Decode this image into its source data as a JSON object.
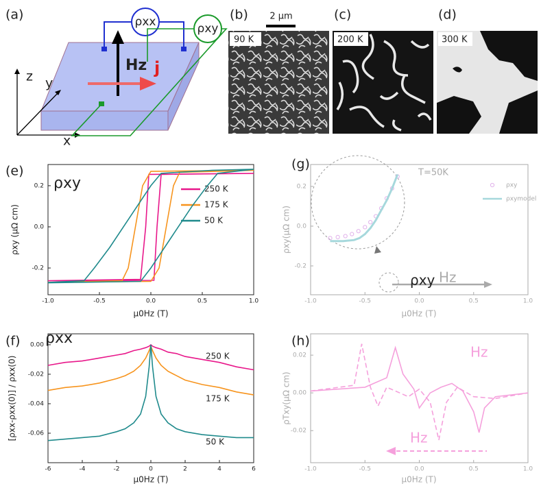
{
  "panels": {
    "a": {
      "label": "(a)",
      "rho_xx": "ρxx",
      "rho_xy": "ρxy",
      "field": "Hz",
      "current": "j",
      "axis_x": "x",
      "axis_y": "y",
      "axis_z": "z"
    },
    "b": {
      "label": "(b)",
      "temperature": "90 K",
      "scale": "2 μm"
    },
    "c": {
      "label": "(c)",
      "temperature": "200 K"
    },
    "d": {
      "label": "(d)",
      "temperature": "300 K"
    }
  },
  "chart_data": [
    {
      "type": "line",
      "label": "(e)",
      "x_label": "μ0Hz (T)",
      "y_label": "ρxy (μΩ cm)",
      "annotations": [
        "ρxy"
      ],
      "xlim": [
        -1,
        1
      ],
      "xticks": [
        {
          "value": -1,
          "label": "-1.0"
        },
        -0.5,
        {
          "value": 0,
          "label": "0.0"
        },
        0.5,
        {
          "value": 1,
          "label": "1.0"
        }
      ],
      "ylim": [
        -0.33,
        0.303
      ],
      "yticks": [
        -0.2,
        {
          "value": 0,
          "label": "0.0"
        },
        0.2
      ],
      "series": [
        {
          "name": "250 K",
          "color": "#e8178a",
          "x": [
            -1,
            0.03,
            0.06,
            0.1,
            1,
            1,
            -0.02,
            -0.05,
            -0.1,
            -1
          ],
          "values": [
            -0.262,
            -0.26,
            0,
            0.255,
            0.26,
            0.26,
            0.255,
            0,
            -0.255,
            -0.262
          ]
        },
        {
          "name": "175 K",
          "color": "#f7941d",
          "x": [
            -1,
            0,
            0.08,
            0.15,
            0.22,
            0.28,
            1,
            1,
            0,
            -0.08,
            -0.15,
            -0.22,
            -0.28,
            -1
          ],
          "values": [
            -0.27,
            -0.265,
            -0.2,
            0,
            0.2,
            0.265,
            0.275,
            0.275,
            0.27,
            0.2,
            0,
            -0.2,
            -0.262,
            -0.27
          ]
        },
        {
          "name": "50 K",
          "color": "#1f8a8c",
          "x": [
            -1,
            -0.1,
            0,
            0.2,
            0.4,
            0.55,
            0.65,
            1,
            1,
            0.6,
            0.1,
            0,
            -0.2,
            -0.4,
            -0.55,
            -0.65,
            -1
          ],
          "values": [
            -0.272,
            -0.265,
            -0.2,
            -0.05,
            0.1,
            0.2,
            0.26,
            0.28,
            0.28,
            0.275,
            0.26,
            0.2,
            0.05,
            -0.1,
            -0.2,
            -0.262,
            -0.27
          ]
        }
      ]
    },
    {
      "type": "line",
      "label": "(f)",
      "x_label": "μ0Hz (T)",
      "y_label": "[ρxx-ρxx(0)] / ρxx(0)",
      "annotations": [
        "ρxx"
      ],
      "xlim": [
        -6,
        6
      ],
      "xticks": [
        -6,
        -4,
        -2,
        0,
        2,
        4,
        6
      ],
      "ylim": [
        -0.08,
        0.0074
      ],
      "yticks": [
        {
          "value": 0,
          "label": "0.00"
        },
        -0.02,
        -0.04,
        -0.06
      ],
      "series": [
        {
          "name": "250 K",
          "color": "#e8178a",
          "x": [
            -6,
            -5,
            -4,
            -3,
            -2,
            -1.5,
            -1,
            -0.6,
            -0.3,
            -0.1,
            0,
            0.1,
            0.3,
            0.6,
            1,
            1.5,
            2,
            3,
            4,
            5,
            6
          ],
          "values": [
            -0.014,
            -0.012,
            -0.011,
            -0.009,
            -0.007,
            -0.006,
            -0.004,
            -0.003,
            -0.002,
            -0.001,
            0,
            -0.001,
            -0.002,
            -0.003,
            -0.005,
            -0.006,
            -0.008,
            -0.01,
            -0.012,
            -0.015,
            -0.017
          ]
        },
        {
          "name": "175 K",
          "color": "#f7941d",
          "x": [
            -6,
            -5,
            -4,
            -3,
            -2,
            -1.5,
            -1,
            -0.6,
            -0.3,
            -0.1,
            0,
            0.1,
            0.3,
            0.6,
            1,
            1.5,
            2,
            3,
            4,
            5,
            6
          ],
          "values": [
            -0.031,
            -0.029,
            -0.028,
            -0.026,
            -0.023,
            -0.021,
            -0.018,
            -0.014,
            -0.009,
            -0.004,
            -0.001,
            -0.004,
            -0.009,
            -0.014,
            -0.018,
            -0.021,
            -0.024,
            -0.027,
            -0.029,
            -0.032,
            -0.034
          ]
        },
        {
          "name": "50 K",
          "color": "#1f8a8c",
          "x": [
            -6,
            -5,
            -4,
            -3,
            -2,
            -1.5,
            -1,
            -0.6,
            -0.3,
            -0.1,
            0,
            0.1,
            0.3,
            0.6,
            1,
            1.5,
            2,
            3,
            4,
            5,
            6
          ],
          "values": [
            -0.065,
            -0.064,
            -0.063,
            -0.062,
            -0.059,
            -0.057,
            -0.053,
            -0.047,
            -0.035,
            -0.015,
            0,
            -0.015,
            -0.035,
            -0.047,
            -0.053,
            -0.057,
            -0.059,
            -0.061,
            -0.062,
            -0.063,
            -0.063
          ]
        }
      ]
    },
    {
      "type": "line",
      "label": "(g)",
      "x_label": "μ0Hz (T)",
      "y_label": "ρxy(μΩ cm)",
      "annotations": [
        "T=50K",
        "ρxy",
        "Hz"
      ],
      "xlim": [
        -1,
        1
      ],
      "xticks": [
        {
          "value": -1,
          "label": "-1.0"
        },
        -0.5,
        {
          "value": 0,
          "label": "0.0"
        },
        0.5,
        {
          "value": 1,
          "label": "1.0"
        }
      ],
      "ylim": [
        -0.345,
        0.31
      ],
      "yticks": [
        0.2,
        {
          "value": 0,
          "label": "0.0"
        },
        -0.2
      ],
      "series": [
        {
          "name": "ρxy",
          "color": "#e0b0ea",
          "marker": "open-circle",
          "x": [
            -0.82,
            -0.75,
            -0.68,
            -0.62,
            -0.56,
            -0.5,
            -0.45,
            -0.4,
            -0.35,
            -0.3,
            -0.25,
            -0.2
          ],
          "values": [
            -0.06,
            -0.055,
            -0.05,
            -0.04,
            -0.025,
            -0.005,
            0.02,
            0.05,
            0.09,
            0.14,
            0.19,
            0.25
          ]
        },
        {
          "name": "ρxymodel",
          "color": "#a6d8dc",
          "x": [
            -0.82,
            -0.7,
            -0.6,
            -0.55,
            -0.5,
            -0.45,
            -0.4,
            -0.35,
            -0.3,
            -0.25,
            -0.2
          ],
          "values": [
            -0.075,
            -0.075,
            -0.07,
            -0.06,
            -0.04,
            -0.01,
            0.03,
            0.08,
            0.13,
            0.19,
            0.26
          ]
        }
      ]
    },
    {
      "type": "line",
      "label": "(h)",
      "x_label": "μ0Hz (T)",
      "y_label": "ρTxy(μΩ cm)",
      "annotations": [
        "Hz",
        "Hz"
      ],
      "xlim": [
        -1,
        1
      ],
      "xticks": [
        {
          "value": -1,
          "label": "-1.0"
        },
        -0.5,
        {
          "value": 0,
          "label": "0.0"
        },
        0.5,
        {
          "value": 1,
          "label": "1.0"
        }
      ],
      "ylim": [
        -0.037,
        0.0313
      ],
      "yticks": [
        0.02,
        {
          "value": 0,
          "label": "0.00"
        },
        -0.02
      ],
      "series": [
        {
          "color": "#f5a0dc",
          "x": [
            -1,
            -0.5,
            -0.3,
            -0.22,
            -0.15,
            -0.05,
            0,
            0.1,
            0.2,
            0.3,
            0.4,
            0.5,
            0.55,
            0.6,
            0.7,
            1
          ],
          "values": [
            0.001,
            0.003,
            0.008,
            0.024,
            0.01,
            0.002,
            -0.008,
            0,
            0.003,
            0.005,
            0.001,
            -0.01,
            -0.021,
            -0.008,
            -0.002,
            0
          ]
        },
        {
          "color": "#f5a0dc",
          "dash": true,
          "x": [
            -1,
            -0.6,
            -0.53,
            -0.45,
            -0.38,
            -0.3,
            -0.1,
            0,
            0.1,
            0.18,
            0.25,
            0.35,
            0.5,
            0.7,
            1
          ],
          "values": [
            0.001,
            0.004,
            0.026,
            0.003,
            -0.007,
            0.003,
            -0.002,
            0.002,
            -0.005,
            -0.025,
            -0.005,
            0.003,
            -0.002,
            -0.003,
            0
          ]
        }
      ]
    }
  ]
}
